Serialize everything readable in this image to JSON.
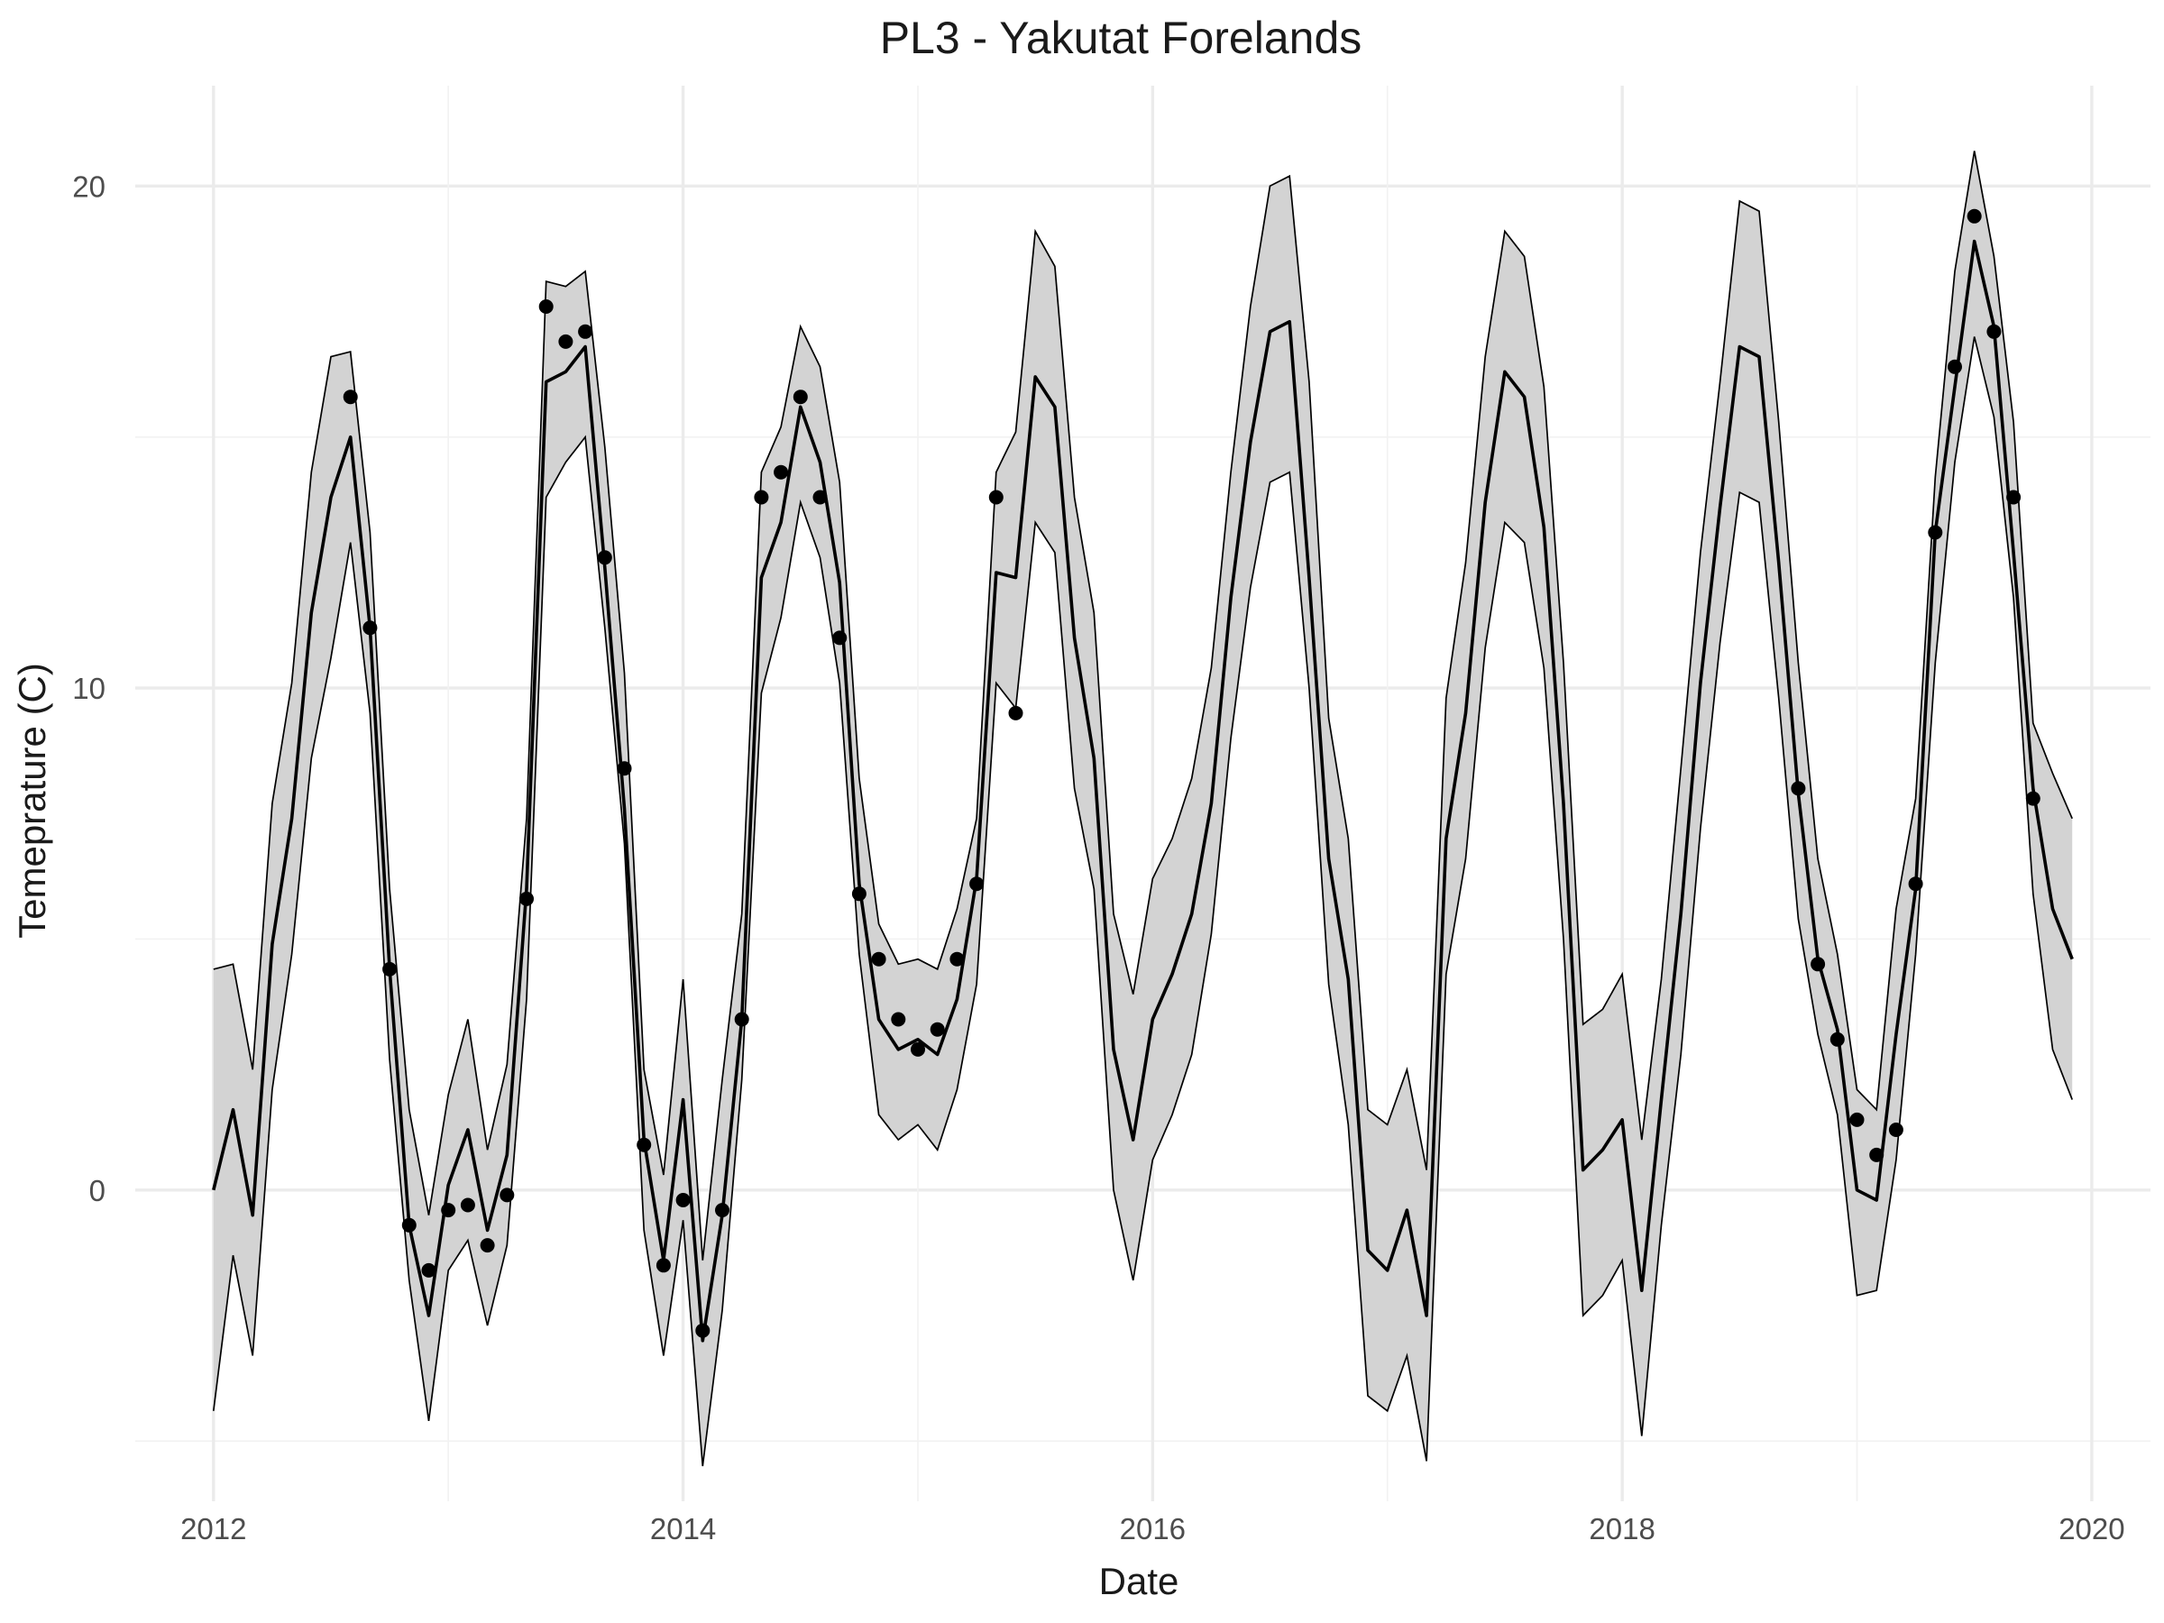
{
  "chart_data": {
    "type": "line",
    "title": "PL3 - Yakutat Forelands",
    "xlabel": "Date",
    "ylabel": "Temeprature (C)",
    "xlim": [
      "2011-09-01",
      "2020-04-01"
    ],
    "ylim": [
      -6.2,
      22.0
    ],
    "x_ticks": [
      "2012",
      "2014",
      "2016",
      "2018",
      "2020"
    ],
    "y_ticks": [
      0,
      10,
      20
    ],
    "grid": true,
    "legend": "none",
    "series": [
      {
        "role": "fitted_line",
        "x": [
          "2012-01",
          "2012-02",
          "2012-03",
          "2012-04",
          "2012-05",
          "2012-06",
          "2012-07",
          "2012-08",
          "2012-09",
          "2012-10",
          "2012-11",
          "2012-12",
          "2013-01",
          "2013-02",
          "2013-03",
          "2013-04",
          "2013-05",
          "2013-06",
          "2013-07",
          "2013-08",
          "2013-09",
          "2013-10",
          "2013-11",
          "2013-12",
          "2014-01",
          "2014-02",
          "2014-03",
          "2014-04",
          "2014-05",
          "2014-06",
          "2014-07",
          "2014-08",
          "2014-09",
          "2014-10",
          "2014-11",
          "2014-12",
          "2015-01",
          "2015-02",
          "2015-03",
          "2015-04",
          "2015-05",
          "2015-06",
          "2015-07",
          "2015-08",
          "2015-09",
          "2015-10",
          "2015-11",
          "2015-12",
          "2016-01",
          "2016-02",
          "2016-03",
          "2016-04",
          "2016-05",
          "2016-06",
          "2016-07",
          "2016-08",
          "2016-09",
          "2016-10",
          "2016-11",
          "2016-12",
          "2017-01",
          "2017-02",
          "2017-03",
          "2017-04",
          "2017-05",
          "2017-06",
          "2017-07",
          "2017-08",
          "2017-09",
          "2017-10",
          "2017-11",
          "2017-12",
          "2018-01",
          "2018-02",
          "2018-03",
          "2018-04",
          "2018-05",
          "2018-06",
          "2018-07",
          "2018-08",
          "2018-09",
          "2018-10",
          "2018-11",
          "2018-12",
          "2019-01",
          "2019-02",
          "2019-03",
          "2019-04",
          "2019-05",
          "2019-06",
          "2019-07",
          "2019-08",
          "2019-09",
          "2019-10",
          "2019-11",
          "2019-12"
        ],
        "y": [
          0.0,
          1.6,
          -0.5,
          4.9,
          7.4,
          11.5,
          13.8,
          15.0,
          11.2,
          4.4,
          -0.7,
          -2.5,
          0.1,
          1.2,
          -0.8,
          0.7,
          6.0,
          16.1,
          16.3,
          16.8,
          12.4,
          7.6,
          1.0,
          -1.4,
          1.8,
          -3.0,
          -0.5,
          3.4,
          12.2,
          13.3,
          15.6,
          14.5,
          12.1,
          6.1,
          3.4,
          2.8,
          3.0,
          2.7,
          3.8,
          6.2,
          12.3,
          12.2,
          16.2,
          15.6,
          11.0,
          8.6,
          2.8,
          1.0,
          3.4,
          4.3,
          5.5,
          7.7,
          11.8,
          14.9,
          17.1,
          17.3,
          12.2,
          6.6,
          4.2,
          -1.2,
          -1.6,
          -0.4,
          -2.5,
          7.0,
          9.5,
          13.7,
          16.3,
          15.8,
          13.2,
          7.7,
          0.4,
          0.8,
          1.4,
          -2.0,
          1.8,
          5.5,
          10.1,
          13.6,
          16.8,
          16.6,
          12.5,
          7.9,
          4.6,
          3.2,
          0.0,
          -0.2,
          3.1,
          6.0,
          13.1,
          16.0,
          18.9,
          17.2,
          12.7,
          8.0,
          5.6,
          4.6
        ]
      },
      {
        "role": "ribbon_upper",
        "y": [
          4.4,
          4.5,
          2.4,
          7.7,
          10.1,
          14.3,
          16.6,
          16.7,
          13.1,
          6.0,
          1.6,
          -0.5,
          1.9,
          3.4,
          0.8,
          2.5,
          7.4,
          18.1,
          18.0,
          18.3,
          14.8,
          10.3,
          2.4,
          0.3,
          4.2,
          -1.4,
          2.2,
          5.5,
          14.3,
          15.2,
          17.2,
          16.4,
          14.1,
          8.2,
          5.3,
          4.5,
          4.6,
          4.4,
          5.6,
          7.4,
          14.3,
          15.1,
          19.1,
          18.4,
          13.8,
          11.5,
          5.5,
          3.9,
          6.2,
          7.0,
          8.2,
          10.4,
          14.3,
          17.6,
          20.0,
          20.2,
          16.1,
          9.4,
          7.0,
          1.6,
          1.3,
          2.4,
          0.4,
          9.8,
          12.5,
          16.6,
          19.1,
          18.6,
          16.0,
          10.5,
          3.3,
          3.6,
          4.3,
          1.0,
          4.2,
          8.4,
          12.7,
          16.1,
          19.7,
          19.5,
          15.3,
          10.5,
          6.6,
          4.7,
          2.0,
          1.6,
          5.6,
          7.8,
          14.2,
          18.3,
          20.7,
          18.6,
          15.3,
          9.3,
          8.3,
          7.4
        ]
      },
      {
        "role": "ribbon_lower",
        "y": [
          -4.4,
          -1.3,
          -3.3,
          2.0,
          4.7,
          8.6,
          10.6,
          12.9,
          9.5,
          2.6,
          -1.8,
          -4.6,
          -1.6,
          -1.0,
          -2.7,
          -1.1,
          3.8,
          13.8,
          14.5,
          15.0,
          11.2,
          6.9,
          -0.8,
          -3.3,
          -0.6,
          -5.5,
          -2.4,
          2.2,
          9.9,
          11.4,
          13.7,
          12.6,
          10.1,
          4.7,
          1.5,
          1.0,
          1.3,
          0.8,
          2.0,
          4.1,
          10.1,
          9.6,
          13.3,
          12.7,
          8.0,
          6.0,
          0.0,
          -1.8,
          0.6,
          1.5,
          2.7,
          5.1,
          9.0,
          12.0,
          14.1,
          14.3,
          10.0,
          4.1,
          1.3,
          -4.1,
          -4.4,
          -3.3,
          -5.4,
          4.3,
          6.6,
          10.8,
          13.3,
          12.9,
          10.4,
          5.0,
          -2.5,
          -2.1,
          -1.4,
          -4.9,
          -0.7,
          2.7,
          7.2,
          10.9,
          13.9,
          13.7,
          9.8,
          5.4,
          3.1,
          1.5,
          -2.1,
          -2.0,
          0.6,
          4.7,
          10.5,
          14.5,
          17.0,
          15.4,
          11.8,
          5.9,
          2.8,
          1.8
        ]
      },
      {
        "role": "observed_points",
        "x": [
          "2012-08",
          "2012-09",
          "2012-10",
          "2012-11",
          "2012-12",
          "2013-01",
          "2013-02",
          "2013-03",
          "2013-04",
          "2013-05",
          "2013-06",
          "2013-07",
          "2013-08",
          "2013-09",
          "2013-10",
          "2013-11",
          "2013-12",
          "2014-01",
          "2014-02",
          "2014-03",
          "2014-04",
          "2014-05",
          "2014-06",
          "2014-07",
          "2014-08",
          "2014-09",
          "2014-10",
          "2014-11",
          "2014-12",
          "2015-01",
          "2015-02",
          "2015-03",
          "2015-04",
          "2015-05",
          "2015-06",
          "2018-10",
          "2018-11",
          "2018-12",
          "2019-01",
          "2019-02",
          "2019-03",
          "2019-04",
          "2019-05",
          "2019-06",
          "2019-07",
          "2019-08",
          "2019-09",
          "2019-10"
        ],
        "y": [
          15.8,
          11.2,
          4.4,
          -0.7,
          -1.6,
          -0.4,
          -0.3,
          -1.1,
          -0.1,
          5.8,
          17.6,
          16.9,
          17.1,
          12.6,
          8.4,
          0.9,
          -1.5,
          -0.2,
          -2.8,
          -0.4,
          3.4,
          13.8,
          14.3,
          15.8,
          13.8,
          11.0,
          5.9,
          4.6,
          3.4,
          2.8,
          3.2,
          4.6,
          6.1,
          13.8,
          9.5,
          8.0,
          4.5,
          3.0,
          1.4,
          0.7,
          1.2,
          6.1,
          13.1,
          16.4,
          19.4,
          17.1,
          13.8,
          7.8
        ]
      }
    ]
  }
}
